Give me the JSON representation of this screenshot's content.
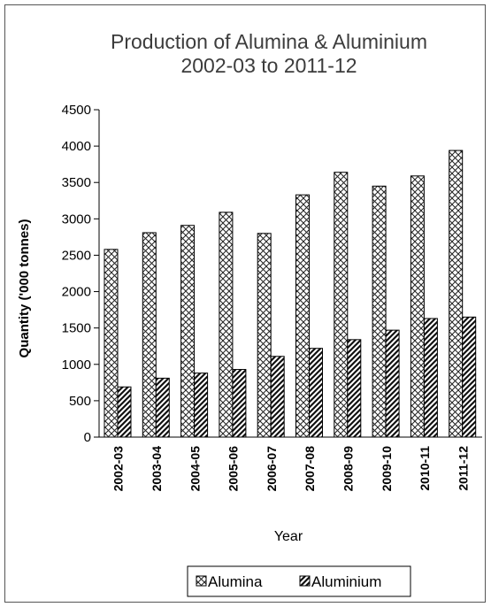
{
  "chart_data": {
    "type": "bar",
    "title": [
      "Production of Alumina & Aluminium",
      "2002-03 to 2011-12"
    ],
    "xlabel": "Year",
    "ylabel": "Quantity ('000 tonnes)",
    "ylim": [
      0,
      4500
    ],
    "yticks": [
      0,
      500,
      1000,
      1500,
      2000,
      2500,
      3000,
      3500,
      4000,
      4500
    ],
    "categories": [
      "2002-03",
      "2003-04",
      "2004-05",
      "2005-06",
      "2006-07",
      "2007-08",
      "2008-09",
      "2009-10",
      "2010-11",
      "2011-12"
    ],
    "series": [
      {
        "name": "Alumina",
        "pattern": "crosshatch",
        "values": [
          2580,
          2810,
          2910,
          3090,
          2800,
          3330,
          3640,
          3450,
          3590,
          3940
        ]
      },
      {
        "name": "Aluminium",
        "pattern": "diagonal",
        "values": [
          690,
          810,
          880,
          930,
          1110,
          1220,
          1340,
          1470,
          1630,
          1650
        ]
      }
    ],
    "legend_position": "bottom",
    "grid": false
  }
}
